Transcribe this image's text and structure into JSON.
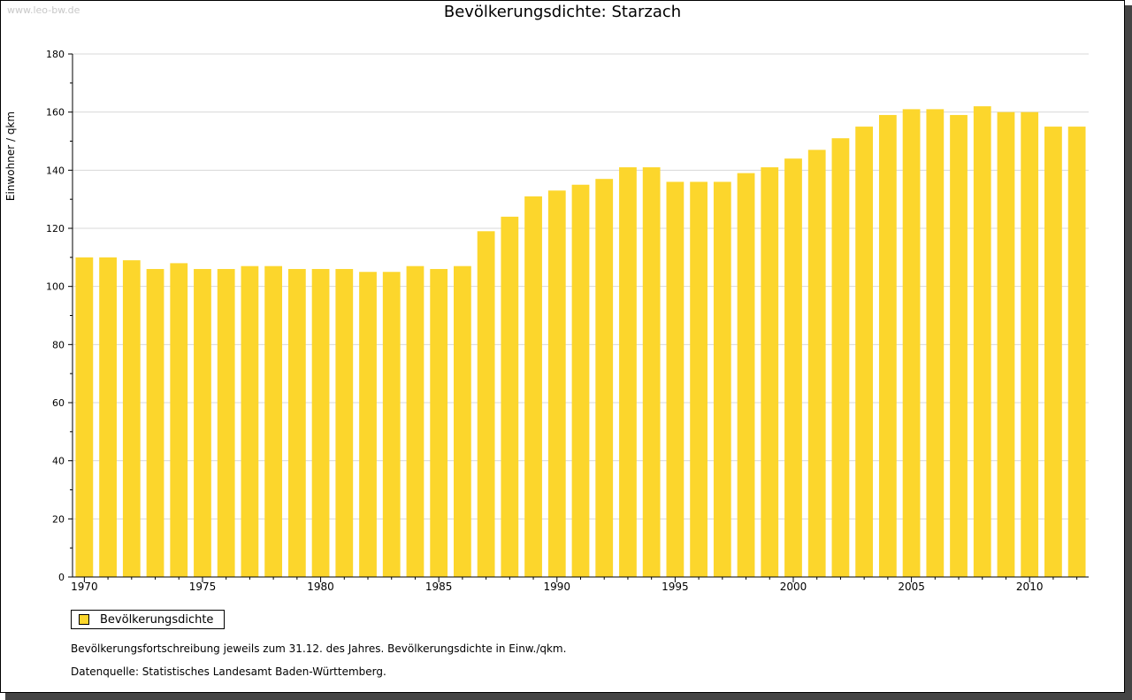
{
  "watermark": "www.leo-bw.de",
  "legend": {
    "label": "Bevölkerungsdichte"
  },
  "notes": {
    "line1": "Bevölkerungsfortschreibung jeweils zum 31.12. des Jahres. Bevölkerungsdichte in Einw./qkm.",
    "line2": "Datenquelle: Statistisches Landesamt Baden-Württemberg."
  },
  "colors": {
    "bar": "#fcd62c",
    "bar_edge": "#f2c600",
    "grid": "#d8d8d8",
    "axis": "#000000"
  },
  "chart_data": {
    "type": "bar",
    "title": "Bevölkerungsdichte: Starzach",
    "xlabel": "",
    "ylabel": "Einwohner / qkm",
    "ylim": [
      0,
      180
    ],
    "yticks": [
      0,
      20,
      40,
      60,
      80,
      100,
      120,
      140,
      160,
      180
    ],
    "xtick_labels": [
      "1970",
      "1975",
      "1980",
      "1985",
      "1990",
      "1995",
      "2000",
      "2005",
      "2010"
    ],
    "grid": true,
    "legend_position": "bottom-left",
    "categories": [
      1970,
      1971,
      1972,
      1973,
      1974,
      1975,
      1976,
      1977,
      1978,
      1979,
      1980,
      1981,
      1982,
      1983,
      1984,
      1985,
      1986,
      1987,
      1988,
      1989,
      1990,
      1991,
      1992,
      1993,
      1994,
      1995,
      1996,
      1997,
      1998,
      1999,
      2000,
      2001,
      2002,
      2003,
      2004,
      2005,
      2006,
      2007,
      2008,
      2009,
      2010,
      2011,
      2012
    ],
    "series": [
      {
        "name": "Bevölkerungsdichte",
        "values": [
          110,
          110,
          109,
          106,
          108,
          106,
          106,
          107,
          107,
          106,
          106,
          106,
          105,
          105,
          107,
          106,
          107,
          119,
          124,
          131,
          133,
          135,
          137,
          141,
          141,
          136,
          136,
          136,
          139,
          141,
          144,
          147,
          151,
          155,
          159,
          161,
          161,
          159,
          162,
          160,
          160,
          155,
          155
        ]
      }
    ]
  }
}
